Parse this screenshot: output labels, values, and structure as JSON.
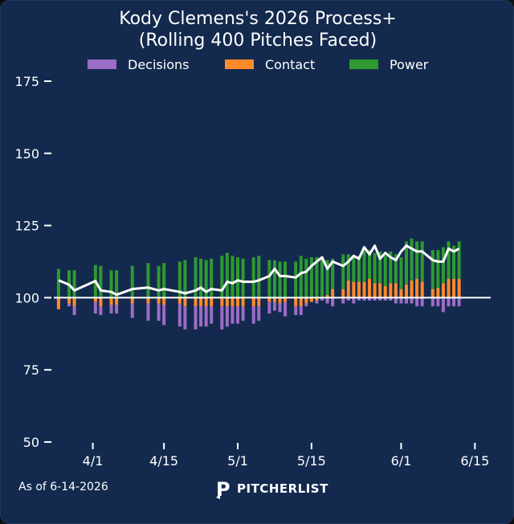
{
  "chart_data": {
    "type": "bar",
    "title": "Kody Clemens's 2026 Process+",
    "subtitle": "(Rolling 400 Pitches Faced)",
    "baseline": 100,
    "ylim": [
      50,
      180
    ],
    "yticks": [
      50,
      75,
      100,
      125,
      150,
      175
    ],
    "xticks": [
      {
        "label": "4/1",
        "index": 6.5
      },
      {
        "label": "4/15",
        "index": 20
      },
      {
        "label": "5/1",
        "index": 34
      },
      {
        "label": "5/15",
        "index": 48
      },
      {
        "label": "6/1",
        "index": 65
      },
      {
        "label": "6/15",
        "index": 79
      }
    ],
    "xlim": [
      -0.9,
      82
    ],
    "stack_order": [
      "contact",
      "decisions",
      "power"
    ],
    "legend_position": "top",
    "grid": false,
    "series": [
      {
        "key": "decisions",
        "name": "Decisions",
        "color": "#9b6dc6"
      },
      {
        "key": "contact",
        "name": "Contact",
        "color": "#ff8a2a"
      },
      {
        "key": "power",
        "name": "Power",
        "color": "#2e9a30"
      }
    ],
    "line": {
      "name": "Process+",
      "color": "#ffffff"
    },
    "bars": [
      {
        "decisions": 0,
        "contact": -4,
        "power": 10,
        "total": 106
      },
      null,
      {
        "decisions": -1,
        "contact": -2,
        "power": 9.5,
        "total": 104.5
      },
      {
        "decisions": -3,
        "contact": -3,
        "power": 9.5,
        "total": 102.5
      },
      null,
      null,
      null,
      {
        "decisions": -4,
        "contact": -1.5,
        "power": 11.3,
        "total": 105.8
      },
      {
        "decisions": -3,
        "contact": -3,
        "power": 11,
        "total": 102.5
      },
      null,
      {
        "decisions": -3,
        "contact": -2.5,
        "power": 9.5,
        "total": 102
      },
      {
        "decisions": -3,
        "contact": -2.5,
        "power": 9.5,
        "total": 101
      },
      null,
      null,
      {
        "decisions": -5,
        "contact": -2,
        "power": 11,
        "total": 103
      },
      null,
      null,
      {
        "decisions": -6,
        "contact": -2,
        "power": 12,
        "total": 103.5
      },
      null,
      {
        "decisions": -6,
        "contact": -2,
        "power": 11,
        "total": 102.5
      },
      {
        "decisions": -7,
        "contact": -2.5,
        "power": 12,
        "total": 103
      },
      null,
      null,
      {
        "decisions": -8,
        "contact": -2,
        "power": 12.5,
        "total": 102
      },
      {
        "decisions": -8,
        "contact": -3,
        "power": 13,
        "total": 101.5
      },
      null,
      {
        "decisions": -8,
        "contact": -3,
        "power": 14,
        "total": 102.5
      },
      {
        "decisions": -7,
        "contact": -3,
        "power": 13.5,
        "total": 103.5
      },
      {
        "decisions": -7,
        "contact": -3,
        "power": 13,
        "total": 102
      },
      {
        "decisions": -6,
        "contact": -3,
        "power": 13.5,
        "total": 103
      },
      null,
      {
        "decisions": -8,
        "contact": -3,
        "power": 14.5,
        "total": 102.5
      },
      {
        "decisions": -7,
        "contact": -3,
        "power": 15.5,
        "total": 105.5
      },
      {
        "decisions": -6,
        "contact": -3,
        "power": 14.5,
        "total": 105
      },
      {
        "decisions": -6,
        "contact": -3,
        "power": 14,
        "total": 106
      },
      {
        "decisions": -5,
        "contact": -3,
        "power": 13.5,
        "total": 105.5
      },
      null,
      {
        "decisions": -6,
        "contact": -3,
        "power": 14,
        "total": 105.5
      },
      {
        "decisions": -5,
        "contact": -3,
        "power": 14.5,
        "total": 106
      },
      null,
      {
        "decisions": -4,
        "contact": -1.5,
        "power": 13,
        "total": 107.5
      },
      {
        "decisions": -3,
        "contact": -1.5,
        "power": 13,
        "total": 110
      },
      {
        "decisions": -3,
        "contact": -2,
        "power": 12.5,
        "total": 107.5
      },
      {
        "decisions": -5,
        "contact": -1.5,
        "power": 12.5,
        "total": 107.5
      },
      null,
      {
        "decisions": -3,
        "contact": -3,
        "power": 12.5,
        "total": 107
      },
      {
        "decisions": -3,
        "contact": -3,
        "power": 14.5,
        "total": 108.5
      },
      {
        "decisions": -1,
        "contact": -2,
        "power": 13.5,
        "total": 109
      },
      {
        "decisions": 0,
        "contact": -1.5,
        "power": 14,
        "total": 111
      },
      {
        "decisions": -1,
        "contact": -1,
        "power": 14,
        "total": 112.5
      },
      {
        "decisions": -1,
        "contact": 0,
        "power": 14,
        "total": 114
      },
      {
        "decisions": -2,
        "contact": 1,
        "power": 12,
        "total": 110
      },
      {
        "decisions": -3,
        "contact": 3,
        "power": 10.5,
        "total": 112.5
      },
      null,
      {
        "decisions": -2,
        "contact": 3,
        "power": 12,
        "total": 111
      },
      {
        "decisions": -1,
        "contact": 6,
        "power": 9,
        "total": 112.5
      },
      {
        "decisions": -2,
        "contact": 5.5,
        "power": 9,
        "total": 114.5
      },
      {
        "decisions": -1,
        "contact": 5.5,
        "power": 9,
        "total": 113.5
      },
      {
        "decisions": -1,
        "contact": 5.5,
        "power": 11,
        "total": 117.5
      },
      {
        "decisions": -1,
        "contact": 6.5,
        "power": 10,
        "total": 115
      },
      {
        "decisions": -1,
        "contact": 5,
        "power": 10.5,
        "total": 118
      },
      {
        "decisions": -1,
        "contact": 5,
        "power": 11,
        "total": 113.5
      },
      {
        "decisions": -1,
        "contact": 4,
        "power": 10.5,
        "total": 115.5
      },
      {
        "decisions": -1,
        "contact": 5,
        "power": 11,
        "total": 114
      },
      {
        "decisions": -2,
        "contact": 5,
        "power": 10,
        "total": 113
      },
      {
        "decisions": -2,
        "contact": 3,
        "power": 11,
        "total": 116
      },
      {
        "decisions": -2,
        "contact": 4.5,
        "power": 15,
        "total": 118
      },
      {
        "decisions": -2,
        "contact": 6,
        "power": 14.5,
        "total": 117
      },
      {
        "decisions": -3,
        "contact": 6.5,
        "power": 13,
        "total": 116
      },
      {
        "decisions": -3,
        "contact": 5.5,
        "power": 14,
        "total": 116
      },
      null,
      {
        "decisions": -3,
        "contact": 3,
        "power": 13.5,
        "total": 113
      },
      {
        "decisions": -3,
        "contact": 3.5,
        "power": 13,
        "total": 112.5
      },
      {
        "decisions": -5,
        "contact": 5,
        "power": 12.5,
        "total": 112.5
      },
      {
        "decisions": -3,
        "contact": 6.5,
        "power": 13,
        "total": 117
      },
      {
        "decisions": -3,
        "contact": 6.5,
        "power": 11.5,
        "total": 116
      },
      {
        "decisions": -3,
        "contact": 6.5,
        "power": 13,
        "total": 117
      }
    ]
  },
  "footer": {
    "as_of": "As of 6-14-2026",
    "logo_mark": "P",
    "logo_text": "PITCHERLIST"
  }
}
